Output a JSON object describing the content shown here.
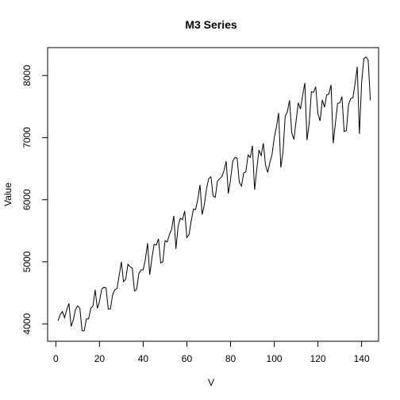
{
  "chart_data": {
    "type": "line",
    "title": "M3 Series",
    "xlabel": "V",
    "ylabel": "Value",
    "xlim": [
      -3.76,
      147.76
    ],
    "ylim": [
      3720,
      8450
    ],
    "xticks": [
      0,
      20,
      40,
      60,
      80,
      100,
      120,
      140
    ],
    "yticks": [
      4000,
      5000,
      6000,
      7000,
      8000
    ],
    "grid": false,
    "series": [
      {
        "color": "#000000",
        "x": [
          1,
          2,
          3,
          4,
          5,
          6,
          7,
          8,
          9,
          10,
          11,
          12,
          13,
          14,
          15,
          16,
          17,
          18,
          19,
          20,
          21,
          22,
          23,
          24,
          25,
          26,
          27,
          28,
          29,
          30,
          31,
          32,
          33,
          34,
          35,
          36,
          37,
          38,
          39,
          40,
          41,
          42,
          43,
          44,
          45,
          46,
          47,
          48,
          49,
          50,
          51,
          52,
          53,
          54,
          55,
          56,
          57,
          58,
          59,
          60,
          61,
          62,
          63,
          64,
          65,
          66,
          67,
          68,
          69,
          70,
          71,
          72,
          73,
          74,
          75,
          76,
          77,
          78,
          79,
          80,
          81,
          82,
          83,
          84,
          85,
          86,
          87,
          88,
          89,
          90,
          91,
          92,
          93,
          94,
          95,
          96,
          97,
          98,
          99,
          100,
          101,
          102,
          103,
          104,
          105,
          106,
          107,
          108,
          109,
          110,
          111,
          112,
          113,
          114,
          115,
          116,
          117,
          118,
          119,
          120,
          121,
          122,
          123,
          124,
          125,
          126,
          127,
          128,
          129,
          130,
          131,
          132,
          133,
          134,
          135,
          136,
          137,
          138,
          139,
          140,
          141,
          142,
          143,
          144
        ],
        "y": [
          4050,
          4150,
          4200,
          4100,
          4230,
          4330,
          3960,
          4060,
          4230,
          4290,
          4250,
          3890,
          3890,
          4080,
          4080,
          4250,
          4290,
          4550,
          4250,
          4360,
          4560,
          4590,
          4580,
          4240,
          4240,
          4470,
          4550,
          4570,
          4780,
          5000,
          4680,
          4720,
          4960,
          4920,
          4900,
          4530,
          4560,
          4810,
          4870,
          4870,
          5040,
          5300,
          4790,
          5060,
          5280,
          5270,
          5370,
          4980,
          5000,
          5340,
          5320,
          5440,
          5520,
          5740,
          5210,
          5580,
          5700,
          5680,
          5820,
          5390,
          5440,
          5660,
          5850,
          5840,
          6010,
          6240,
          5760,
          5920,
          6180,
          6340,
          6370,
          6060,
          6040,
          6300,
          6340,
          6370,
          6470,
          6620,
          6100,
          6330,
          6620,
          6680,
          6670,
          6280,
          6220,
          6430,
          6450,
          6720,
          6680,
          6870,
          6160,
          6490,
          6800,
          6710,
          6910,
          6560,
          6440,
          6600,
          6730,
          7000,
          7170,
          7400,
          6520,
          6760,
          7340,
          7420,
          7600,
          7080,
          6970,
          7270,
          7560,
          7460,
          7680,
          7880,
          6960,
          7230,
          7740,
          7730,
          7820,
          7380,
          7270,
          7610,
          7490,
          7690,
          7700,
          7850,
          6910,
          7230,
          7550,
          7560,
          7660,
          7100,
          7110,
          7530,
          7630,
          7640,
          7870,
          8140,
          7060,
          7880,
          8270,
          8300,
          8250,
          7600
        ]
      }
    ]
  }
}
